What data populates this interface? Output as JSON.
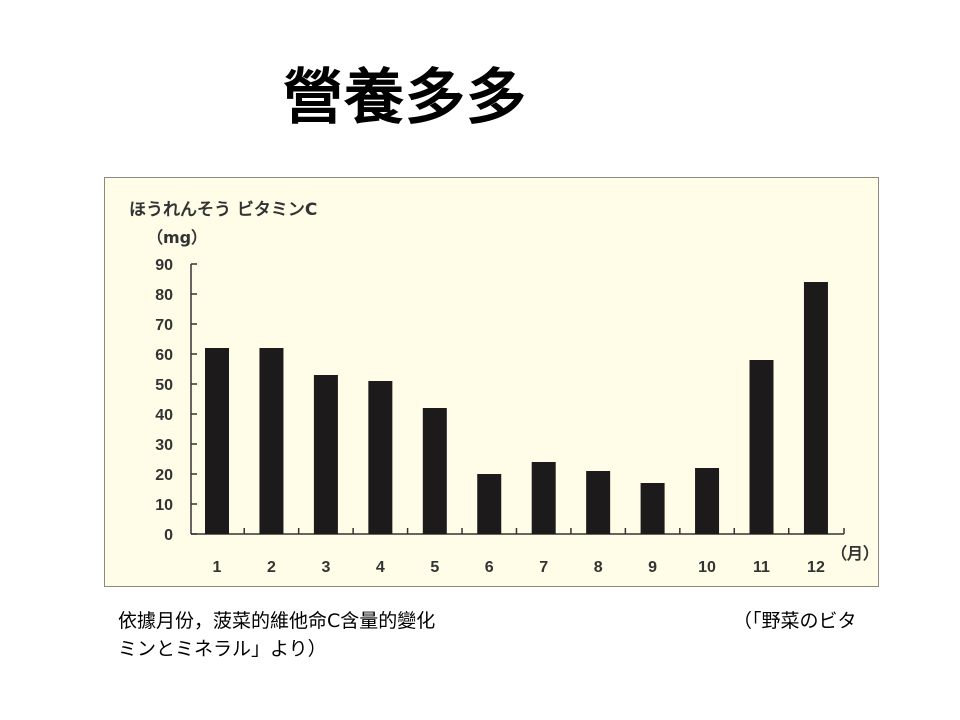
{
  "slide": {
    "title": "營養多多",
    "caption_line1_left": "依據月份，菠菜的維他命C含量的變化",
    "caption_line1_right": "（「野菜のビタ",
    "caption_line2": "ミンとミネラル」より）"
  },
  "colors": {
    "page_background": "#FFFFFF",
    "chart_background": "#FFFDE8",
    "chart_border": "#8A8A80",
    "bar": "#1C1A1A",
    "axis": "#333333",
    "chart_text": "#333333"
  },
  "chart_data": {
    "type": "bar",
    "title": "ほうれんそう ビタミンC",
    "ylabel": "（mg）",
    "xlabel": "（月）",
    "categories": [
      "1",
      "2",
      "3",
      "4",
      "5",
      "6",
      "7",
      "8",
      "9",
      "10",
      "11",
      "12"
    ],
    "values": [
      62,
      62,
      53,
      51,
      42,
      20,
      24,
      21,
      17,
      22,
      58,
      84
    ],
    "ylim": [
      0,
      90
    ],
    "yticks": [
      0,
      10,
      20,
      30,
      40,
      50,
      60,
      70,
      80,
      90
    ],
    "grid": false,
    "legend": "none"
  }
}
